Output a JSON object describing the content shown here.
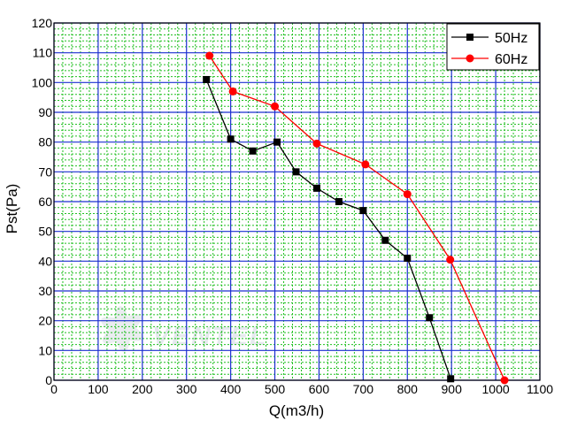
{
  "chart_data": {
    "type": "line",
    "title": "",
    "xlabel": "Q(m3/h)",
    "ylabel": "Pst(Pa)",
    "xlim": [
      0,
      1100
    ],
    "ylim": [
      0,
      120
    ],
    "x_ticks": [
      0,
      100,
      200,
      300,
      400,
      500,
      600,
      700,
      800,
      900,
      1000,
      1100
    ],
    "y_ticks": [
      0,
      10,
      20,
      30,
      40,
      50,
      60,
      70,
      80,
      90,
      100,
      110,
      120
    ],
    "grid": true,
    "legend_position": "top-right",
    "series": [
      {
        "name": "50Hz",
        "color": "#000000",
        "marker": "square",
        "x": [
          345,
          400,
          450,
          505,
          548,
          595,
          645,
          700,
          750,
          800,
          850,
          898
        ],
        "y": [
          101,
          81,
          77,
          80,
          70,
          64.5,
          60,
          57,
          47,
          41,
          21,
          0.5
        ]
      },
      {
        "name": "60Hz",
        "color": "#ff0000",
        "marker": "circle",
        "x": [
          352,
          405,
          500,
          595,
          705,
          800,
          897,
          1020
        ],
        "y": [
          109,
          97,
          92,
          79.5,
          72.5,
          62.5,
          40.5,
          0
        ]
      }
    ]
  },
  "watermark": {
    "text": "VENTEL"
  }
}
